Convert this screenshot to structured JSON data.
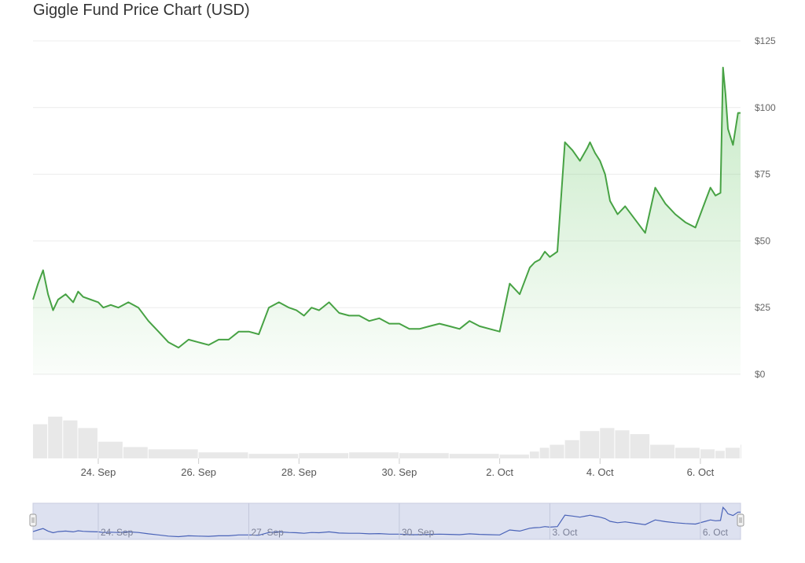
{
  "title": "Giggle Fund Price Chart (USD)",
  "colors": {
    "line": "#47a244",
    "area": "#5cc25a",
    "grid": "#ececec",
    "volume": "#e8e8e8",
    "navigator_fill": "#dde1f0",
    "navigator_line": "#4a63b8"
  },
  "chart_data": {
    "type": "area",
    "title": "Giggle Fund Price Chart (USD)",
    "xlabel": "",
    "ylabel": "",
    "ylim": [
      0,
      125
    ],
    "ytick_labels": [
      "$0",
      "$25",
      "$50",
      "$75",
      "$100",
      "$125"
    ],
    "yticks": [
      0,
      25,
      50,
      75,
      100,
      125
    ],
    "x_ticks": [
      {
        "label": "24. Sep",
        "day": 24.0
      },
      {
        "label": "26. Sep",
        "day": 26.0
      },
      {
        "label": "28. Sep",
        "day": 28.0
      },
      {
        "label": "30. Sep",
        "day": 30.0
      },
      {
        "label": "2. Oct",
        "day": 32.0
      },
      {
        "label": "4. Oct",
        "day": 34.0
      },
      {
        "label": "6. Oct",
        "day": 36.0
      }
    ],
    "navigator_ticks": [
      {
        "label": "24. Sep",
        "day": 24.0
      },
      {
        "label": "27. Sep",
        "day": 27.0
      },
      {
        "label": "30. Sep",
        "day": 30.0
      },
      {
        "label": "3. Oct",
        "day": 33.0
      },
      {
        "label": "6. Oct",
        "day": 36.0
      }
    ],
    "grid": true,
    "series": [
      {
        "name": "Price",
        "x": [
          22.7,
          22.8,
          22.9,
          23.0,
          23.1,
          23.2,
          23.35,
          23.5,
          23.6,
          23.7,
          23.85,
          24.0,
          24.1,
          24.25,
          24.4,
          24.6,
          24.8,
          25.0,
          25.2,
          25.4,
          25.6,
          25.8,
          26.0,
          26.2,
          26.4,
          26.6,
          26.8,
          27.0,
          27.2,
          27.4,
          27.6,
          27.8,
          27.95,
          28.1,
          28.25,
          28.4,
          28.6,
          28.8,
          29.0,
          29.2,
          29.4,
          29.6,
          29.8,
          30.0,
          30.2,
          30.4,
          30.6,
          30.8,
          31.0,
          31.2,
          31.4,
          31.6,
          31.8,
          32.0,
          32.2,
          32.4,
          32.6,
          32.7,
          32.8,
          32.9,
          33.0,
          33.15,
          33.3,
          33.45,
          33.6,
          33.75,
          33.8,
          33.9,
          34.0,
          34.1,
          34.2,
          34.35,
          34.5,
          34.7,
          34.9,
          35.1,
          35.3,
          35.5,
          35.7,
          35.9,
          36.1,
          36.2,
          36.3,
          36.4,
          36.45,
          36.5,
          36.55,
          36.65,
          36.75,
          36.8
        ],
        "values": [
          28,
          34,
          39,
          30,
          24,
          28,
          30,
          27,
          31,
          29,
          28,
          27,
          25,
          26,
          25,
          27,
          25,
          20,
          16,
          12,
          10,
          13,
          12,
          11,
          13,
          13,
          16,
          16,
          15,
          25,
          27,
          25,
          24,
          22,
          25,
          24,
          27,
          23,
          22,
          22,
          20,
          21,
          19,
          19,
          17,
          17,
          18,
          19,
          18,
          17,
          20,
          18,
          17,
          16,
          34,
          30,
          40,
          42,
          43,
          46,
          44,
          46,
          87,
          84,
          80,
          85,
          87,
          83,
          80,
          75,
          65,
          60,
          63,
          58,
          53,
          70,
          64,
          60,
          57,
          55,
          65,
          70,
          67,
          68,
          115,
          105,
          92,
          86,
          98,
          98
        ]
      },
      {
        "name": "Volume",
        "x": [
          22.7,
          23.0,
          23.3,
          23.6,
          24.0,
          24.5,
          25.0,
          26.0,
          27.0,
          28.0,
          29.0,
          30.0,
          31.0,
          32.0,
          32.6,
          32.8,
          33.0,
          33.3,
          33.6,
          34.0,
          34.3,
          34.6,
          35.0,
          35.5,
          36.0,
          36.3,
          36.5,
          36.8
        ],
        "values": [
          45,
          55,
          50,
          40,
          22,
          15,
          12,
          8,
          6,
          7,
          8,
          7,
          6,
          5,
          9,
          14,
          18,
          24,
          36,
          40,
          37,
          32,
          18,
          14,
          12,
          10,
          14,
          18
        ]
      }
    ]
  }
}
